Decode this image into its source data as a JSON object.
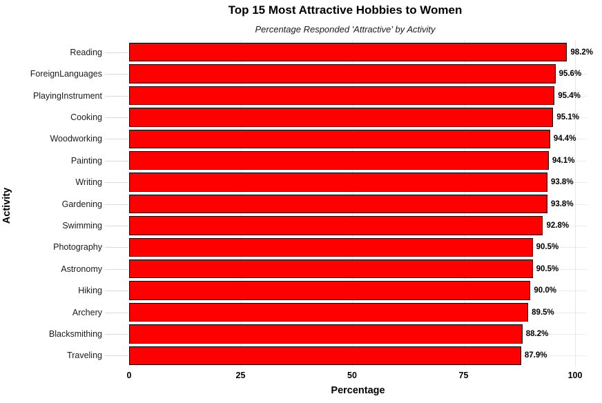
{
  "chart_data": {
    "type": "bar",
    "orientation": "horizontal",
    "title": "Top 15 Most Attractive Hobbies to Women",
    "subtitle": "Percentage Responded 'Attractive' by Activity",
    "xlabel": "Percentage",
    "ylabel": "Activity",
    "categories": [
      "Reading",
      "ForeignLanguages",
      "PlayingInstrument",
      "Cooking",
      "Woodworking",
      "Painting",
      "Writing",
      "Gardening",
      "Swimming",
      "Photography",
      "Astronomy",
      "Hiking",
      "Archery",
      "Blacksmithing",
      "Traveling"
    ],
    "values": [
      98.2,
      95.6,
      95.4,
      95.1,
      94.4,
      94.1,
      93.8,
      93.8,
      92.8,
      90.5,
      90.5,
      90.0,
      89.5,
      88.2,
      87.9
    ],
    "value_labels": [
      "98.2%",
      "95.6%",
      "95.4%",
      "95.1%",
      "94.4%",
      "94.1%",
      "93.8%",
      "93.8%",
      "92.8%",
      "90.5%",
      "90.5%",
      "90.0%",
      "89.5%",
      "88.2%",
      "87.9%"
    ],
    "x_ticks": [
      0,
      25,
      50,
      75,
      100
    ],
    "xlim": [
      0,
      100
    ],
    "grid": true,
    "legend_position": "none",
    "bar_color": "#ff0000",
    "bar_border_color": "#000000",
    "grid_color": "#e8e8e8"
  }
}
